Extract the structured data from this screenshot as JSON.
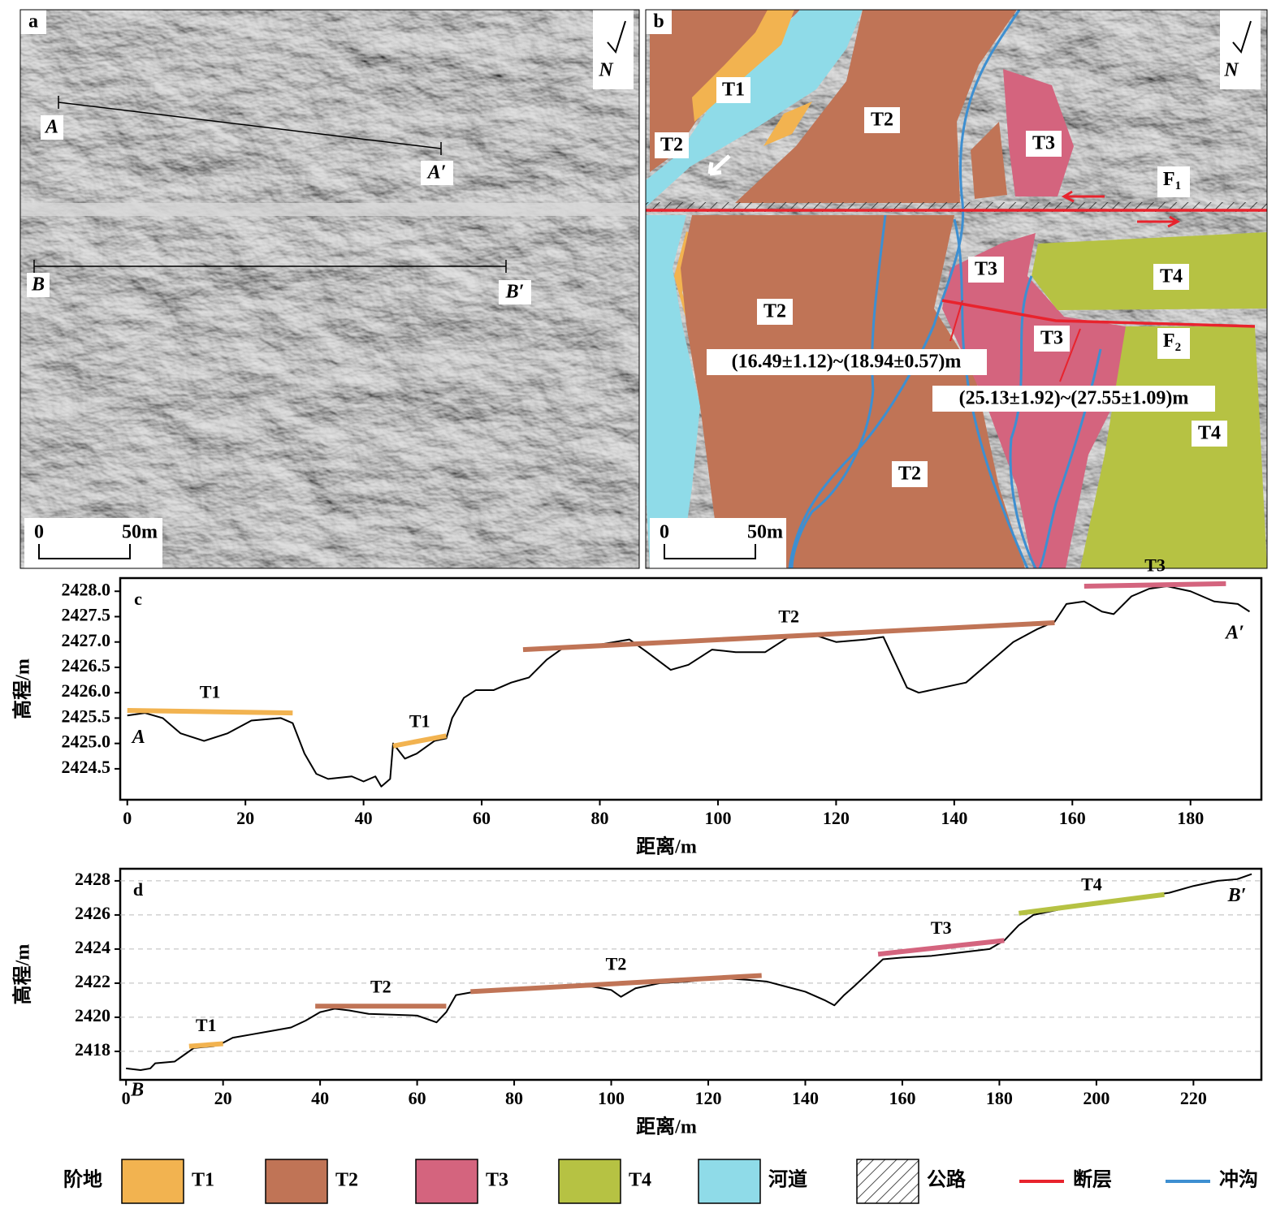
{
  "panels": {
    "a": {
      "letter": "a",
      "north": "N",
      "profile_labels": [
        "A",
        "A′",
        "B",
        "B′"
      ],
      "scale": [
        "0",
        "50m"
      ]
    },
    "b": {
      "letter": "b",
      "north": "N",
      "scale": [
        "0",
        "50m"
      ],
      "units": [
        "T1",
        "T2",
        "T2",
        "T3",
        "T3",
        "T3",
        "T2",
        "T2",
        "T4",
        "T4"
      ],
      "faults": [
        {
          "main": "F",
          "sub": "1"
        },
        {
          "main": "F",
          "sub": "2"
        }
      ],
      "offsets": [
        "(16.49±1.12)~(18.94±0.57)m",
        "(25.13±1.92)~(27.55±1.09)m"
      ]
    }
  },
  "chart_data": [
    {
      "type": "line",
      "panel": "c",
      "y_label": "高程/m",
      "x_label": "距离/m",
      "grid": false,
      "xlim": [
        -1.2,
        192
      ],
      "ylim": [
        2423.89,
        2428.26
      ],
      "xticks": [
        0,
        20,
        40,
        60,
        80,
        100,
        120,
        140,
        160,
        180
      ],
      "yticks": [
        2424.5,
        {
          "value": 2425,
          "label": "2425.0"
        },
        2425.5,
        {
          "value": 2426,
          "label": "2426.0"
        },
        2426.5,
        {
          "value": 2427,
          "label": "2427.0"
        },
        2427.5,
        {
          "value": 2428,
          "label": "2428.0"
        }
      ],
      "start_label": "A",
      "end_label": "A′",
      "series": [
        {
          "color": "#000000",
          "width": 2,
          "x": [
            0,
            3,
            6,
            9,
            13,
            17,
            21,
            26,
            28,
            30,
            32,
            34,
            38,
            40,
            42,
            43,
            44.5,
            45,
            47,
            49,
            52,
            54,
            55,
            57,
            59,
            62,
            65,
            68,
            71,
            74,
            80,
            85,
            88,
            92,
            95,
            99,
            103,
            108,
            112,
            116,
            120,
            125,
            128,
            130,
            132,
            134,
            138,
            142,
            146,
            150,
            154,
            157,
            159,
            162,
            165,
            167,
            170,
            173,
            176,
            180,
            184,
            188,
            190
          ],
          "values": [
            2425.55,
            2425.6,
            2425.5,
            2425.2,
            2425.05,
            2425.2,
            2425.45,
            2425.5,
            2425.4,
            2424.8,
            2424.4,
            2424.3,
            2424.35,
            2424.25,
            2424.35,
            2424.15,
            2424.3,
            2425.0,
            2424.7,
            2424.8,
            2425.05,
            2425.1,
            2425.5,
            2425.9,
            2426.05,
            2426.05,
            2426.2,
            2426.3,
            2426.65,
            2426.9,
            2426.95,
            2427.05,
            2426.8,
            2426.45,
            2426.55,
            2426.85,
            2426.8,
            2426.8,
            2427.1,
            2427.15,
            2427.0,
            2427.05,
            2427.1,
            2426.6,
            2426.1,
            2426.0,
            2426.1,
            2426.2,
            2426.6,
            2427.0,
            2427.25,
            2427.4,
            2427.75,
            2427.8,
            2427.6,
            2427.55,
            2427.9,
            2428.05,
            2428.1,
            2428.0,
            2427.8,
            2427.75,
            2427.6
          ]
        },
        {
          "name": "T1",
          "color": "#f2b350",
          "width": 6,
          "x": [
            0,
            28
          ],
          "values": [
            2425.65,
            2425.6
          ]
        },
        {
          "name": "T1",
          "color": "#f2b350",
          "width": 6,
          "x": [
            45,
            54
          ],
          "values": [
            2424.95,
            2425.15
          ]
        },
        {
          "name": "T2",
          "color": "#c07456",
          "width": 6,
          "x": [
            67,
            157
          ],
          "values": [
            2426.85,
            2427.38
          ]
        },
        {
          "name": "T3",
          "color": "#d4647e",
          "width": 6,
          "x": [
            162,
            186
          ],
          "values": [
            2428.1,
            2428.15
          ]
        }
      ]
    },
    {
      "type": "line",
      "panel": "d",
      "y_label": "高程/m",
      "x_label": "距离/m",
      "grid": true,
      "xlim": [
        -1.2,
        234
      ],
      "ylim": [
        2416.33,
        2428.71
      ],
      "xticks": [
        0,
        20,
        40,
        60,
        80,
        100,
        120,
        140,
        160,
        180,
        200,
        220
      ],
      "yticks": [
        2418,
        2420,
        2422,
        2424,
        2426,
        2428
      ],
      "start_label": "B",
      "end_label": "B′",
      "series": [
        {
          "color": "#000000",
          "width": 2,
          "x": [
            0,
            3,
            5,
            6,
            10,
            12,
            14,
            18,
            20,
            22,
            26,
            30,
            34,
            37,
            40,
            43,
            46,
            50,
            55,
            60,
            64,
            66,
            68,
            72,
            78,
            84,
            90,
            96,
            100,
            102,
            105,
            110,
            116,
            122,
            128,
            132,
            136,
            140,
            144,
            146,
            148,
            150,
            153,
            156,
            160,
            166,
            172,
            178,
            181,
            184,
            187,
            192,
            198,
            204,
            210,
            215,
            220,
            225,
            229,
            232
          ],
          "values": [
            2417.0,
            2416.9,
            2417.0,
            2417.3,
            2417.4,
            2417.8,
            2418.2,
            2418.3,
            2418.5,
            2418.8,
            2419.0,
            2419.2,
            2419.4,
            2419.8,
            2420.3,
            2420.5,
            2420.4,
            2420.2,
            2420.15,
            2420.1,
            2419.7,
            2420.3,
            2421.3,
            2421.5,
            2421.6,
            2421.7,
            2421.8,
            2421.8,
            2421.6,
            2421.2,
            2421.7,
            2422.0,
            2422.1,
            2422.3,
            2422.2,
            2422.1,
            2421.8,
            2421.5,
            2421.0,
            2420.7,
            2421.3,
            2421.8,
            2422.6,
            2423.4,
            2423.5,
            2423.6,
            2423.8,
            2424.0,
            2424.5,
            2425.4,
            2426.0,
            2426.3,
            2426.6,
            2426.9,
            2427.1,
            2427.3,
            2427.7,
            2428.0,
            2428.1,
            2428.4
          ]
        },
        {
          "name": "T1",
          "color": "#f2b350",
          "width": 6,
          "x": [
            13,
            20
          ],
          "values": [
            2418.3,
            2418.45
          ]
        },
        {
          "name": "T2",
          "color": "#c07456",
          "width": 6,
          "x": [
            39,
            66
          ],
          "values": [
            2420.65,
            2420.65
          ]
        },
        {
          "name": "T2",
          "color": "#c07456",
          "width": 6,
          "x": [
            71,
            131
          ],
          "values": [
            2421.5,
            2422.45
          ]
        },
        {
          "name": "T3",
          "color": "#d4647e",
          "width": 6,
          "x": [
            155,
            181
          ],
          "values": [
            2423.7,
            2424.5
          ]
        },
        {
          "name": "T4",
          "color": "#b6c243",
          "width": 6,
          "x": [
            184,
            214
          ],
          "values": [
            2426.1,
            2427.2
          ]
        }
      ]
    }
  ],
  "legend": {
    "title": "阶地",
    "items": [
      {
        "label": "T1",
        "color": "#f2b350"
      },
      {
        "label": "T2",
        "color": "#c07456"
      },
      {
        "label": "T3",
        "color": "#d4647e"
      },
      {
        "label": "T4",
        "color": "#b6c243"
      },
      {
        "label": "河道",
        "color": "#8fdbe8"
      },
      {
        "label": "公路"
      },
      {
        "label": "断层",
        "color": "#e8232d"
      },
      {
        "label": "冲沟",
        "color": "#3d8fd1"
      }
    ]
  }
}
